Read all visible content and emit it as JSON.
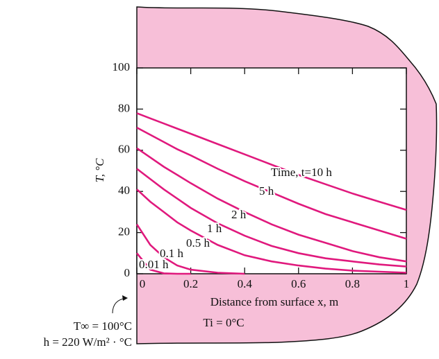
{
  "chart_data": {
    "type": "line",
    "xlabel": "Distance from surface x, m",
    "ylabel": "T, °C",
    "annotations": [
      "T∞ = 100°C",
      "h = 220 W/m² · °C",
      "Ti = 0°C"
    ],
    "x": [
      0,
      0.05,
      0.1,
      0.15,
      0.2,
      0.3,
      0.4,
      0.5,
      0.6,
      0.7,
      0.8,
      0.9,
      1
    ],
    "xlim": [
      0,
      1
    ],
    "xticks": [
      0,
      0.2,
      0.4,
      0.6,
      0.8,
      1
    ],
    "ylim": [
      0,
      100
    ],
    "yticks": [
      0,
      20,
      40,
      60,
      80,
      100
    ],
    "series": [
      {
        "name": "Time, t=10 h",
        "color": "#e0197d",
        "values": [
          78,
          75.5,
          73,
          70.5,
          68,
          63,
          58,
          53,
          48,
          43.5,
          39,
          35,
          31
        ]
      },
      {
        "name": "5 h",
        "color": "#e0197d",
        "values": [
          71,
          67.5,
          64,
          60.5,
          57.5,
          51,
          45,
          39.5,
          34,
          29,
          25,
          21,
          17
        ]
      },
      {
        "name": "2 h",
        "color": "#e0197d",
        "values": [
          61,
          56.5,
          52,
          48,
          44,
          36.5,
          30,
          24,
          19,
          15,
          11,
          8,
          6
        ]
      },
      {
        "name": "1 h",
        "color": "#e0197d",
        "values": [
          51,
          46,
          41,
          36.5,
          32,
          24.5,
          18.5,
          13.5,
          10,
          7.5,
          6,
          4.5,
          3.5
        ]
      },
      {
        "name": "0.5 h",
        "color": "#e0197d",
        "values": [
          41,
          35,
          30,
          25,
          21,
          14,
          9,
          6,
          4,
          2.5,
          1.5,
          1,
          0.5
        ]
      },
      {
        "name": "0.1 h",
        "color": "#e0197d",
        "values": [
          24,
          14,
          8,
          4,
          2,
          0.5,
          0,
          null,
          null,
          null,
          null,
          null,
          null
        ]
      },
      {
        "name": "0.01 h",
        "color": "#e0197d",
        "values": [
          10,
          2,
          0.2,
          0,
          0,
          null,
          null,
          null,
          null,
          null,
          null,
          null,
          null
        ]
      }
    ]
  }
}
